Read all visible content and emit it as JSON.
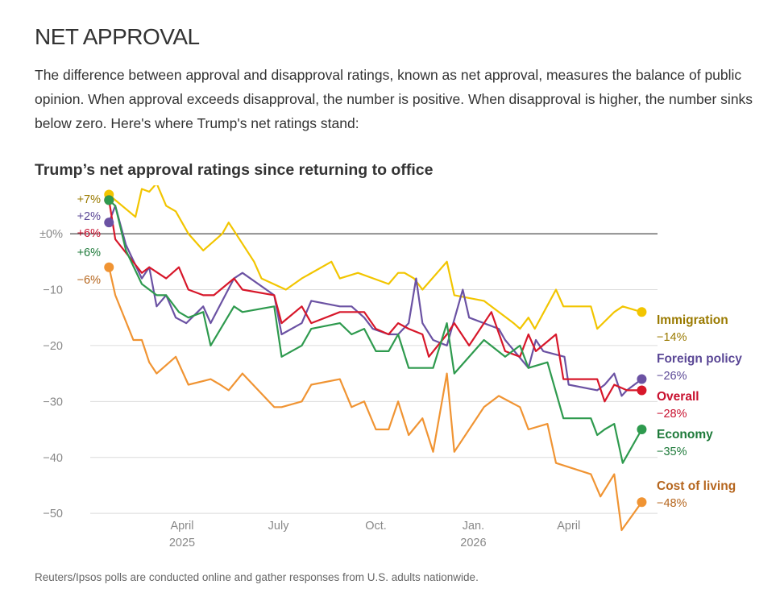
{
  "section_title": "NET APPROVAL",
  "intro": "The difference between approval and disapproval ratings, known as net approval, measures the balance of public opinion. When approval exceeds disapproval, the number is positive. When disapproval is higher, the number sinks below zero. Here's where Trump's net ratings stand:",
  "source_note": "Reuters/Ipsos polls are conducted online and gather responses from U.S. adults nationwide.",
  "chart_data": {
    "type": "line",
    "title": "Trump’s net approval ratings since returning to office",
    "xlabel": "",
    "ylabel": "",
    "ylim": [
      -53,
      7.5
    ],
    "xlim": [
      "2025-01-18",
      "2026-06-14"
    ],
    "grid": true,
    "y_ticks": [
      {
        "value": 0,
        "label": "±0%"
      },
      {
        "value": -10,
        "label": "−10"
      },
      {
        "value": -20,
        "label": "−20"
      },
      {
        "value": -30,
        "label": "−30"
      },
      {
        "value": -40,
        "label": "−40"
      },
      {
        "value": -50,
        "label": "−50"
      }
    ],
    "x_ticks": [
      {
        "date": "2025-04-01",
        "label": "April",
        "year": "2025"
      },
      {
        "date": "2025-07-01",
        "label": "July",
        "year": ""
      },
      {
        "date": "2025-10-01",
        "label": "Oct.",
        "year": ""
      },
      {
        "date": "2026-01-01",
        "label": "Jan.",
        "year": "2026"
      },
      {
        "date": "2026-04-01",
        "label": "April",
        "year": ""
      }
    ],
    "series": [
      {
        "name": "Immigration",
        "color": "#f2c500",
        "label_color": "#9a7a00",
        "start_label": "+7%",
        "end_label": "−14%",
        "points": [
          [
            "2025-01-22",
            7
          ],
          [
            "2025-01-28",
            6
          ],
          [
            "2025-02-16",
            3
          ],
          [
            "2025-02-22",
            8
          ],
          [
            "2025-03-01",
            7.5
          ],
          [
            "2025-03-08",
            9
          ],
          [
            "2025-03-17",
            5
          ],
          [
            "2025-03-26",
            4
          ],
          [
            "2025-04-07",
            0
          ],
          [
            "2025-04-21",
            -3
          ],
          [
            "2025-05-09",
            0
          ],
          [
            "2025-05-15",
            2
          ],
          [
            "2025-06-08",
            -5
          ],
          [
            "2025-06-15",
            -8
          ],
          [
            "2025-07-08",
            -10
          ],
          [
            "2025-07-23",
            -8
          ],
          [
            "2025-08-20",
            -5
          ],
          [
            "2025-08-28",
            -8
          ],
          [
            "2025-09-14",
            -7
          ],
          [
            "2025-10-13",
            -9
          ],
          [
            "2025-10-22",
            -7
          ],
          [
            "2025-10-28",
            -7
          ],
          [
            "2025-11-06",
            -8
          ],
          [
            "2025-11-14",
            -10
          ],
          [
            "2025-12-07",
            -5
          ],
          [
            "2025-12-14",
            -11
          ],
          [
            "2026-01-11",
            -12
          ],
          [
            "2026-02-08",
            -16
          ],
          [
            "2026-02-14",
            -17
          ],
          [
            "2026-02-22",
            -15
          ],
          [
            "2026-02-28",
            -17
          ],
          [
            "2026-03-20",
            -10
          ],
          [
            "2026-03-27",
            -13
          ],
          [
            "2026-04-22",
            -13
          ],
          [
            "2026-04-28",
            -17
          ],
          [
            "2026-05-14",
            -14
          ],
          [
            "2026-05-22",
            -13
          ],
          [
            "2026-06-09",
            -14
          ]
        ]
      },
      {
        "name": "Foreign policy",
        "color": "#6b52a3",
        "label_color": "#5b4896",
        "start_label": "+2%",
        "end_label": "−26%",
        "points": [
          [
            "2025-01-22",
            2
          ],
          [
            "2025-01-28",
            5
          ],
          [
            "2025-02-07",
            -2
          ],
          [
            "2025-02-22",
            -8
          ],
          [
            "2025-03-01",
            -6
          ],
          [
            "2025-03-08",
            -13
          ],
          [
            "2025-03-17",
            -11
          ],
          [
            "2025-03-26",
            -15
          ],
          [
            "2025-04-05",
            -16
          ],
          [
            "2025-04-21",
            -13
          ],
          [
            "2025-04-28",
            -16
          ],
          [
            "2025-05-20",
            -8
          ],
          [
            "2025-05-28",
            -7
          ],
          [
            "2025-06-27",
            -11
          ],
          [
            "2025-07-04",
            -18
          ],
          [
            "2025-07-23",
            -16
          ],
          [
            "2025-08-01",
            -12
          ],
          [
            "2025-08-28",
            -13
          ],
          [
            "2025-09-08",
            -13
          ],
          [
            "2025-09-20",
            -15
          ],
          [
            "2025-09-28",
            -17
          ],
          [
            "2025-10-13",
            -18
          ],
          [
            "2025-10-22",
            -18
          ],
          [
            "2025-11-01",
            -16
          ],
          [
            "2025-11-08",
            -8
          ],
          [
            "2025-11-14",
            -16
          ],
          [
            "2025-11-24",
            -19
          ],
          [
            "2025-12-07",
            -20
          ],
          [
            "2025-12-22",
            -10
          ],
          [
            "2025-12-28",
            -15
          ],
          [
            "2026-01-25",
            -17
          ],
          [
            "2026-01-31",
            -19
          ],
          [
            "2026-02-22",
            -24
          ],
          [
            "2026-03-01",
            -19
          ],
          [
            "2026-03-08",
            -21
          ],
          [
            "2026-03-28",
            -22
          ],
          [
            "2026-04-01",
            -27
          ],
          [
            "2026-04-28",
            -28
          ],
          [
            "2026-05-05",
            -27
          ],
          [
            "2026-05-14",
            -25
          ],
          [
            "2026-05-21",
            -29
          ],
          [
            "2026-05-26",
            -28
          ],
          [
            "2026-06-09",
            -26
          ]
        ]
      },
      {
        "name": "Overall",
        "color": "#d7172a",
        "label_color": "#c8102e",
        "start_label": "+6%",
        "end_label": "−28%",
        "points": [
          [
            "2025-01-22",
            6
          ],
          [
            "2025-01-28",
            -1
          ],
          [
            "2025-02-22",
            -7
          ],
          [
            "2025-03-01",
            -6
          ],
          [
            "2025-03-17",
            -8
          ],
          [
            "2025-03-29",
            -6
          ],
          [
            "2025-04-07",
            -10
          ],
          [
            "2025-04-21",
            -11
          ],
          [
            "2025-05-01",
            -11
          ],
          [
            "2025-05-20",
            -8
          ],
          [
            "2025-05-28",
            -10
          ],
          [
            "2025-06-27",
            -11
          ],
          [
            "2025-07-04",
            -16
          ],
          [
            "2025-07-23",
            -13
          ],
          [
            "2025-08-01",
            -16
          ],
          [
            "2025-08-28",
            -14
          ],
          [
            "2025-09-08",
            -14
          ],
          [
            "2025-09-20",
            -14
          ],
          [
            "2025-10-01",
            -17
          ],
          [
            "2025-10-13",
            -18
          ],
          [
            "2025-10-22",
            -16
          ],
          [
            "2025-11-01",
            -17
          ],
          [
            "2025-11-14",
            -18
          ],
          [
            "2025-11-20",
            -22
          ],
          [
            "2025-12-07",
            -18
          ],
          [
            "2025-12-14",
            -16
          ],
          [
            "2025-12-28",
            -20
          ],
          [
            "2026-01-18",
            -14
          ],
          [
            "2026-01-31",
            -21
          ],
          [
            "2026-02-14",
            -22
          ],
          [
            "2026-02-22",
            -18
          ],
          [
            "2026-03-01",
            -21
          ],
          [
            "2026-03-20",
            -18
          ],
          [
            "2026-03-27",
            -26
          ],
          [
            "2026-04-22",
            -26
          ],
          [
            "2026-04-28",
            -26
          ],
          [
            "2026-05-05",
            -30
          ],
          [
            "2026-05-14",
            -27
          ],
          [
            "2026-05-26",
            -28
          ],
          [
            "2026-06-09",
            -28
          ]
        ]
      },
      {
        "name": "Economy",
        "color": "#2e9a4e",
        "label_color": "#1e7a3a",
        "start_label": "+6%",
        "end_label": "−35%",
        "points": [
          [
            "2025-01-22",
            6
          ],
          [
            "2025-01-28",
            5
          ],
          [
            "2025-02-07",
            -3
          ],
          [
            "2025-02-22",
            -9
          ],
          [
            "2025-03-08",
            -11
          ],
          [
            "2025-03-17",
            -11
          ],
          [
            "2025-03-29",
            -14
          ],
          [
            "2025-04-07",
            -15
          ],
          [
            "2025-04-21",
            -14
          ],
          [
            "2025-04-28",
            -20
          ],
          [
            "2025-05-20",
            -13
          ],
          [
            "2025-05-28",
            -14
          ],
          [
            "2025-06-27",
            -13
          ],
          [
            "2025-07-04",
            -22
          ],
          [
            "2025-07-23",
            -20
          ],
          [
            "2025-08-01",
            -17
          ],
          [
            "2025-08-28",
            -16
          ],
          [
            "2025-09-08",
            -18
          ],
          [
            "2025-09-20",
            -17
          ],
          [
            "2025-10-01",
            -21
          ],
          [
            "2025-10-13",
            -21
          ],
          [
            "2025-10-22",
            -18
          ],
          [
            "2025-11-01",
            -24
          ],
          [
            "2025-11-14",
            -24
          ],
          [
            "2025-11-24",
            -24
          ],
          [
            "2025-12-07",
            -16
          ],
          [
            "2025-12-14",
            -25
          ],
          [
            "2026-01-11",
            -19
          ],
          [
            "2026-01-31",
            -22
          ],
          [
            "2026-02-14",
            -20
          ],
          [
            "2026-02-22",
            -24
          ],
          [
            "2026-03-12",
            -23
          ],
          [
            "2026-03-27",
            -33
          ],
          [
            "2026-04-22",
            -33
          ],
          [
            "2026-04-28",
            -36
          ],
          [
            "2026-05-05",
            -35
          ],
          [
            "2026-05-14",
            -34
          ],
          [
            "2026-05-22",
            -41
          ],
          [
            "2026-06-09",
            -35
          ]
        ]
      },
      {
        "name": "Cost of living",
        "color": "#f09433",
        "label_color": "#b5651d",
        "start_label": "−6%",
        "end_label": "−48%",
        "points": [
          [
            "2025-01-22",
            -6
          ],
          [
            "2025-01-28",
            -11
          ],
          [
            "2025-02-14",
            -19
          ],
          [
            "2025-02-22",
            -19
          ],
          [
            "2025-03-01",
            -23
          ],
          [
            "2025-03-08",
            -25
          ],
          [
            "2025-03-26",
            -22
          ],
          [
            "2025-04-07",
            -27
          ],
          [
            "2025-04-28",
            -26
          ],
          [
            "2025-05-07",
            -27
          ],
          [
            "2025-05-15",
            -28
          ],
          [
            "2025-05-28",
            -25
          ],
          [
            "2025-06-27",
            -31
          ],
          [
            "2025-07-04",
            -31
          ],
          [
            "2025-07-23",
            -30
          ],
          [
            "2025-08-01",
            -27
          ],
          [
            "2025-08-28",
            -26
          ],
          [
            "2025-09-08",
            -31
          ],
          [
            "2025-09-20",
            -30
          ],
          [
            "2025-10-01",
            -35
          ],
          [
            "2025-10-13",
            -35
          ],
          [
            "2025-10-22",
            -30
          ],
          [
            "2025-11-01",
            -36
          ],
          [
            "2025-11-14",
            -33
          ],
          [
            "2025-11-24",
            -39
          ],
          [
            "2025-12-07",
            -25
          ],
          [
            "2025-12-14",
            -39
          ],
          [
            "2026-01-11",
            -31
          ],
          [
            "2026-01-25",
            -29
          ],
          [
            "2026-02-14",
            -31
          ],
          [
            "2026-02-22",
            -35
          ],
          [
            "2026-03-12",
            -34
          ],
          [
            "2026-03-20",
            -41
          ],
          [
            "2026-04-22",
            -43
          ],
          [
            "2026-05-01",
            -47
          ],
          [
            "2026-05-14",
            -43
          ],
          [
            "2026-05-21",
            -53
          ],
          [
            "2026-06-09",
            -48
          ]
        ]
      }
    ]
  }
}
